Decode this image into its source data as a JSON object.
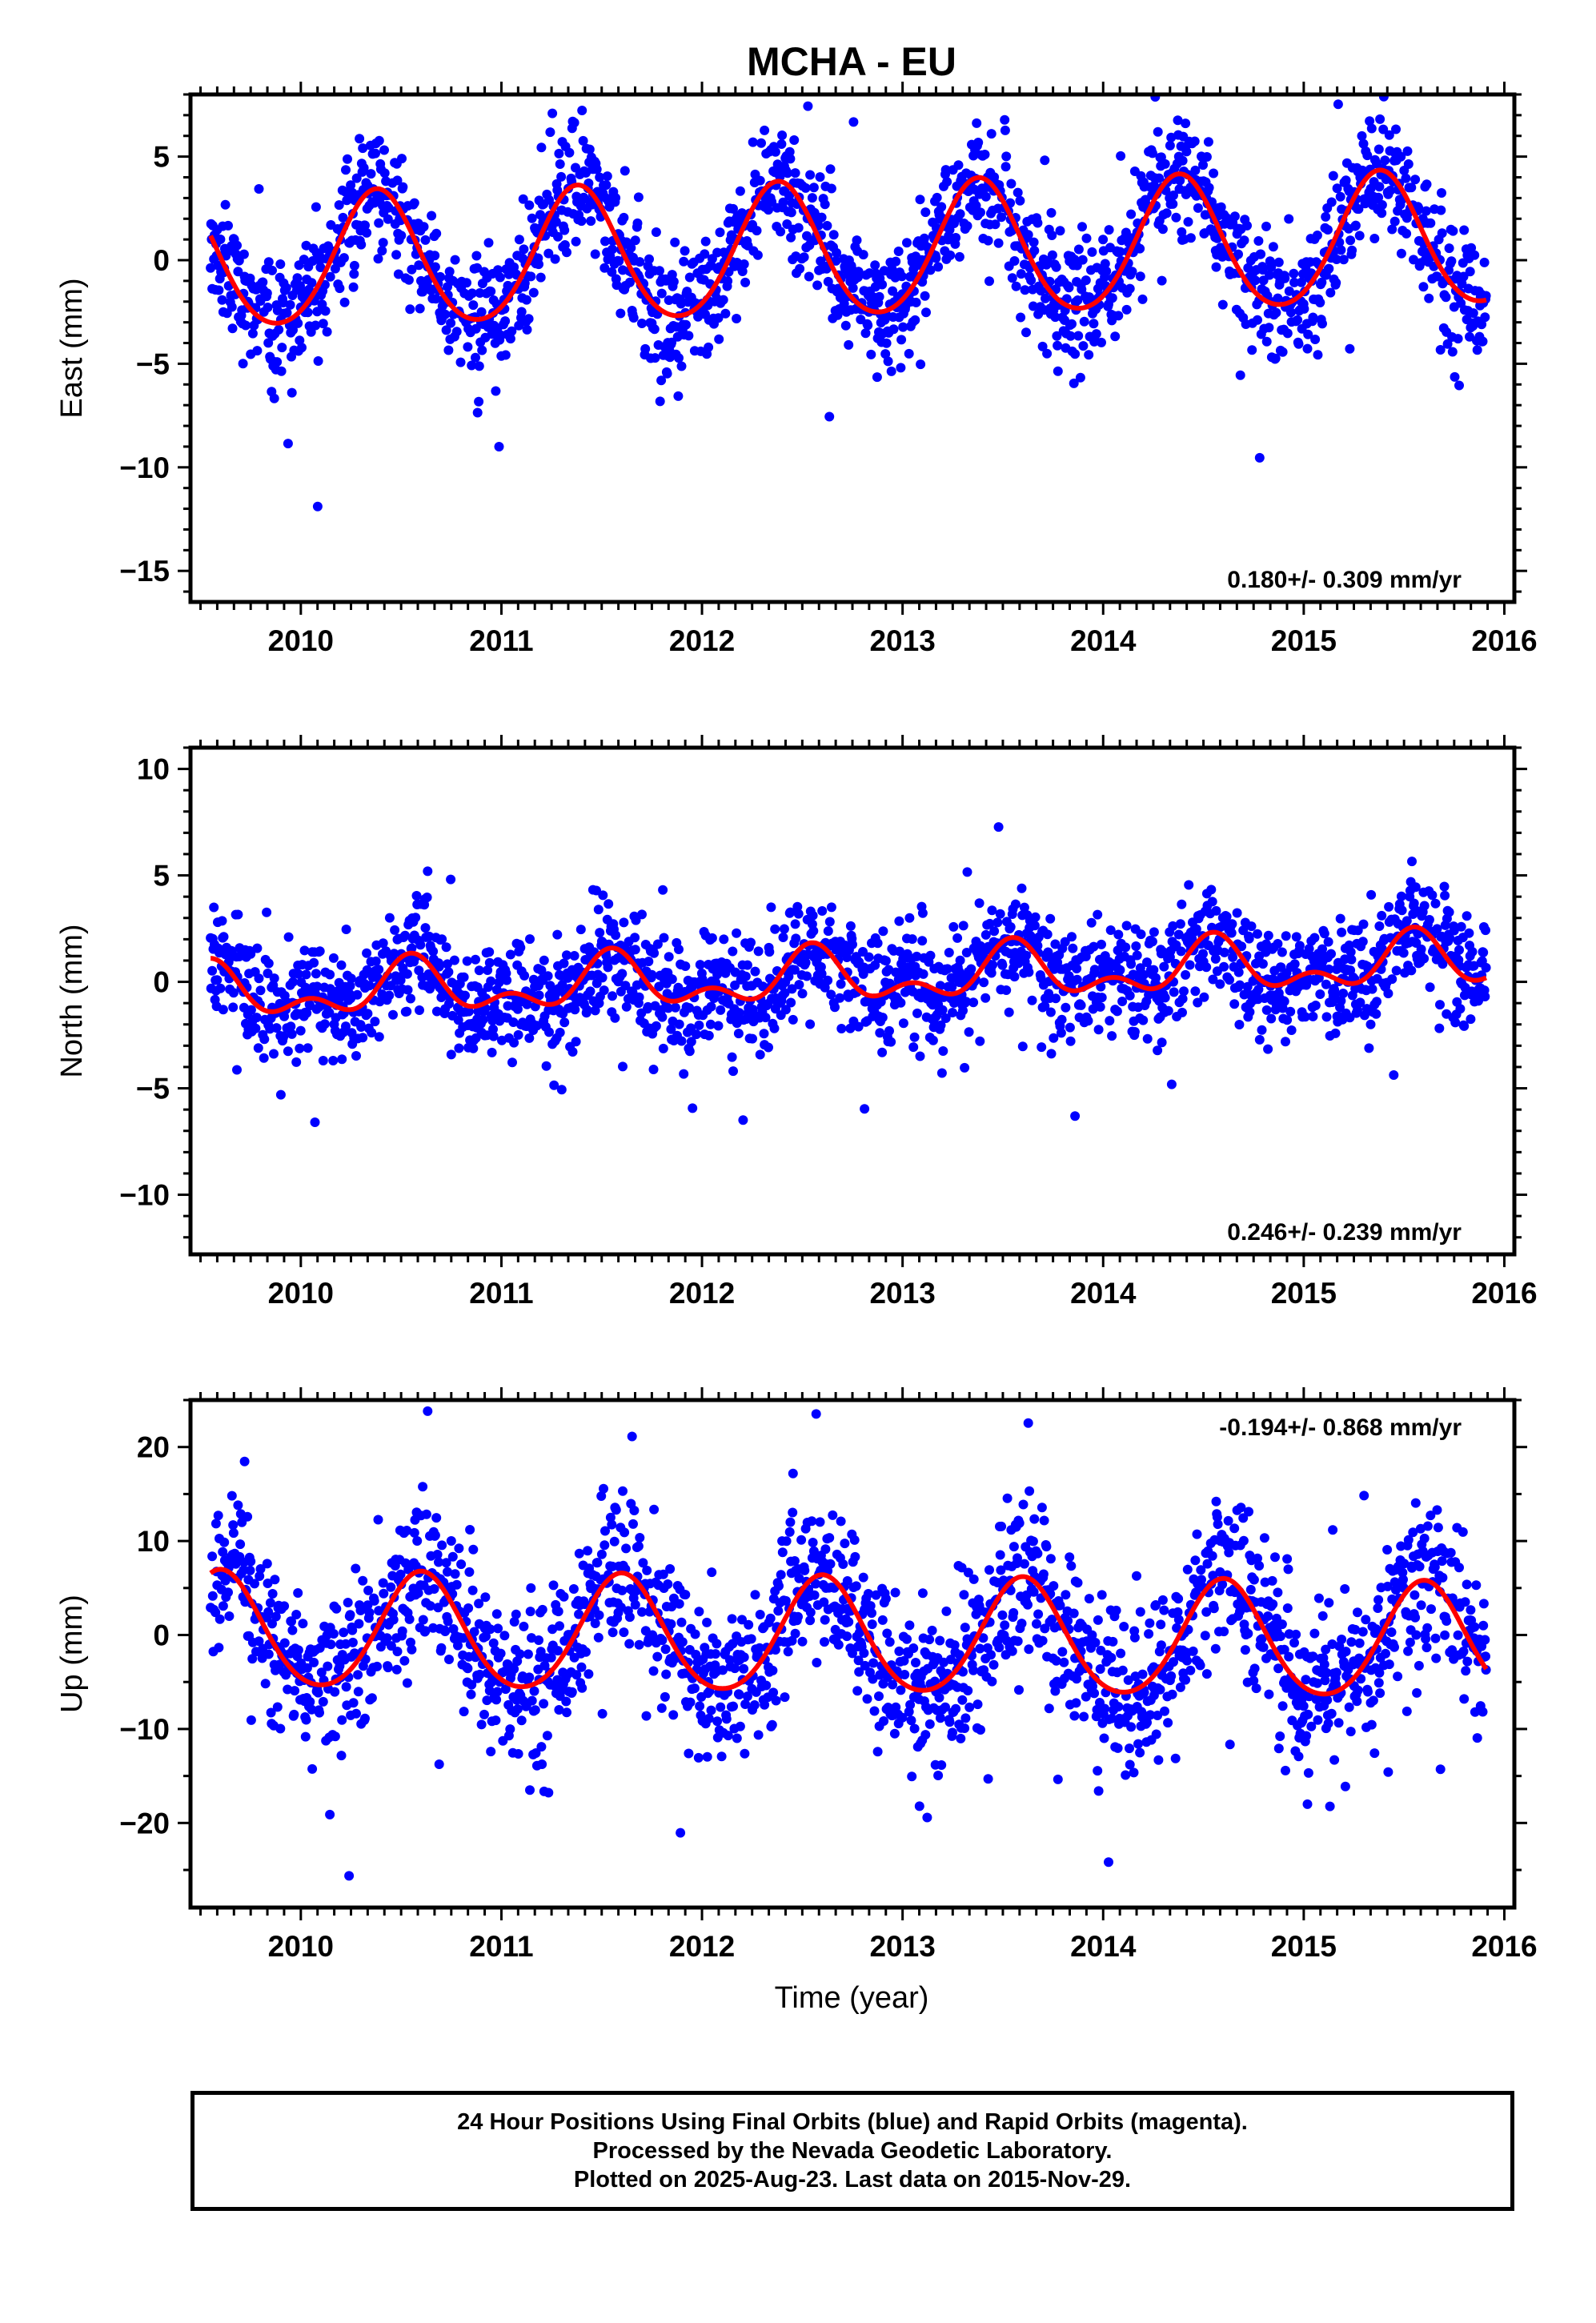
{
  "title": "MCHA - EU",
  "xlabel": "Time (year)",
  "footer": {
    "lines": [
      "24 Hour Positions Using Final Orbits (blue) and Rapid Orbits (magenta).",
      "Processed by the Nevada Geodetic Laboratory.",
      "Plotted on 2025-Aug-23. Last data on 2015-Nov-29."
    ]
  },
  "colors": {
    "points": "#0000ff",
    "fit": "#ff0000",
    "frame": "#000000"
  },
  "chart_data": [
    {
      "type": "scatter",
      "ylabel": "East (mm)",
      "xlim": [
        2009.45,
        2016.05
      ],
      "ylim": [
        -16.5,
        8
      ],
      "yticks": [
        5,
        0,
        -5,
        -10,
        -15
      ],
      "xticks": [
        2010,
        2011,
        2012,
        2013,
        2014,
        2015,
        2016
      ],
      "rate_label": "0.180+/- 0.309 mm/yr",
      "rate_position": "bottom-right",
      "model": {
        "t0": 2009.55,
        "t1": 2015.91,
        "offset": -0.2,
        "rate": 0.18,
        "annual_amp": 3.2,
        "annual_phase_peak": 0.38,
        "semiannual_amp": 0.3
      },
      "scatter_sd": 1.5,
      "fit_samples": [
        [
          2009.55,
          1.2
        ],
        [
          2009.9,
          -3.8
        ],
        [
          2010.4,
          3.0
        ],
        [
          2010.9,
          -3.5
        ],
        [
          2011.4,
          3.1
        ],
        [
          2011.9,
          -3.3
        ],
        [
          2012.4,
          3.3
        ],
        [
          2012.9,
          -3.1
        ],
        [
          2013.4,
          3.5
        ],
        [
          2013.9,
          -2.9
        ],
        [
          2014.4,
          3.7
        ],
        [
          2014.9,
          -2.8
        ],
        [
          2015.4,
          3.9
        ],
        [
          2015.91,
          -2.5
        ]
      ]
    },
    {
      "type": "scatter",
      "ylabel": "North (mm)",
      "xlim": [
        2009.45,
        2016.05
      ],
      "ylim": [
        -12.8,
        11
      ],
      "yticks": [
        10,
        5,
        0,
        -5,
        -10
      ],
      "xticks": [
        2010,
        2011,
        2012,
        2013,
        2014,
        2015,
        2016
      ],
      "rate_label": "0.246+/- 0.239 mm/yr",
      "rate_position": "bottom-right",
      "model": {
        "t0": 2009.55,
        "t1": 2015.91,
        "offset": -0.6,
        "rate": 0.246,
        "annual_amp": 1.0,
        "annual_phase_peak": 0.55,
        "semiannual_amp": 0.7
      },
      "scatter_sd": 1.3,
      "fit_samples": [
        [
          2009.55,
          0.8
        ],
        [
          2009.8,
          -1.4
        ],
        [
          2010.0,
          -0.8
        ],
        [
          2010.2,
          -1.8
        ],
        [
          2010.5,
          1.2
        ],
        [
          2010.8,
          -1.2
        ],
        [
          2011.0,
          -0.7
        ],
        [
          2011.2,
          -1.7
        ],
        [
          2011.5,
          1.4
        ],
        [
          2011.8,
          -1.0
        ],
        [
          2012.0,
          -0.4
        ],
        [
          2012.2,
          -1.4
        ],
        [
          2012.5,
          1.6
        ],
        [
          2012.8,
          -0.8
        ],
        [
          2013.0,
          -0.3
        ],
        [
          2013.2,
          -1.1
        ],
        [
          2013.5,
          2.0
        ],
        [
          2013.8,
          -0.5
        ],
        [
          2014.0,
          0.0
        ],
        [
          2014.2,
          -0.9
        ],
        [
          2014.5,
          2.2
        ],
        [
          2014.8,
          -0.3
        ],
        [
          2015.0,
          0.3
        ],
        [
          2015.2,
          -0.6
        ],
        [
          2015.5,
          2.5
        ],
        [
          2015.91,
          0.3
        ]
      ]
    },
    {
      "type": "scatter",
      "ylabel": "Up (mm)",
      "xlim": [
        2009.45,
        2016.05
      ],
      "ylim": [
        -29,
        25
      ],
      "yticks": [
        20,
        10,
        0,
        -10,
        -20
      ],
      "xticks": [
        2010,
        2011,
        2012,
        2013,
        2014,
        2015,
        2016
      ],
      "rate_label": "-0.194+/- 0.868 mm/yr",
      "rate_position": "top-right",
      "model": {
        "t0": 2009.55,
        "t1": 2015.91,
        "offset": 0.3,
        "rate": -0.194,
        "annual_amp": 6.1,
        "annual_phase_peak": 0.6,
        "semiannual_amp": 0.6
      },
      "scatter_sd": 4.2,
      "fit_samples": [
        [
          2009.55,
          7.0
        ],
        [
          2010.05,
          -5.2
        ],
        [
          2010.6,
          6.6
        ],
        [
          2011.05,
          -5.8
        ],
        [
          2011.6,
          6.5
        ],
        [
          2012.05,
          -5.9
        ],
        [
          2012.6,
          6.2
        ],
        [
          2013.05,
          -6.1
        ],
        [
          2013.6,
          6.0
        ],
        [
          2014.05,
          -6.2
        ],
        [
          2014.6,
          5.8
        ],
        [
          2015.05,
          -6.3
        ],
        [
          2015.6,
          5.6
        ],
        [
          2015.91,
          -4.5
        ]
      ]
    }
  ]
}
